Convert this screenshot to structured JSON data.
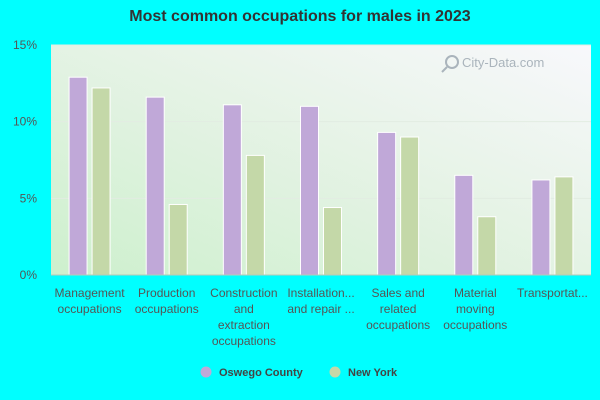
{
  "chart_data": {
    "type": "bar",
    "title": "Most common occupations for males in 2023",
    "categories": [
      [
        "Management",
        "occupations"
      ],
      [
        "Production",
        "occupations"
      ],
      [
        "Construction",
        "and",
        "extraction",
        "occupations"
      ],
      [
        "Installation...",
        "and repair ..."
      ],
      [
        "Sales and",
        "related",
        "occupations"
      ],
      [
        "Material",
        "moving",
        "occupations"
      ],
      [
        "Transportat..."
      ]
    ],
    "series": [
      {
        "name": "Oswego County",
        "color": "#c0a8d8",
        "values": [
          12.9,
          11.6,
          11.1,
          11.0,
          9.3,
          6.5,
          6.2
        ]
      },
      {
        "name": "New York",
        "color": "#c4d8a8",
        "values": [
          12.2,
          4.6,
          7.8,
          4.4,
          9.0,
          3.8,
          6.4
        ]
      }
    ],
    "ylim": [
      0,
      15
    ],
    "yticks": [
      0,
      5,
      10,
      15
    ],
    "tick_suffix": "%",
    "grid": true,
    "legend": "bottom-center"
  },
  "watermark": "City-Data.com"
}
